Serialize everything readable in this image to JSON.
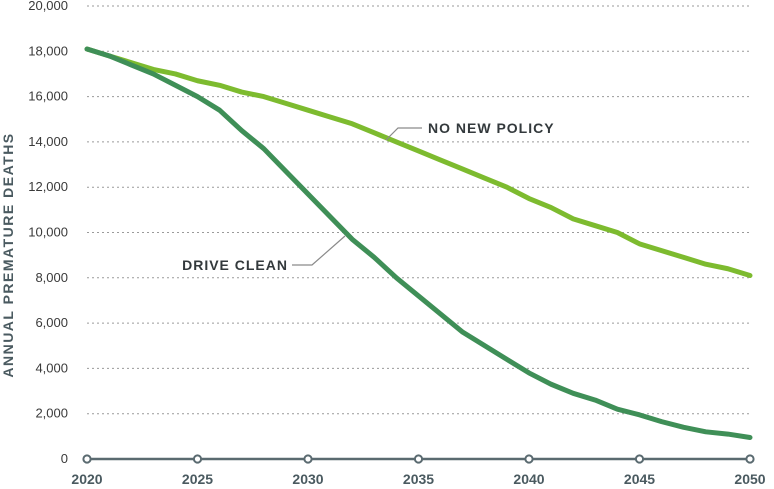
{
  "chart_data": {
    "type": "line",
    "title": "",
    "xlabel": "",
    "ylabel": "ANNUAL PREMATURE DEATHS",
    "xlim": [
      2020,
      2050
    ],
    "ylim": [
      0,
      20000
    ],
    "x_ticks": [
      2020,
      2025,
      2030,
      2035,
      2040,
      2045,
      2050
    ],
    "x_tick_labels": [
      "2020",
      "2025",
      "2030",
      "2035",
      "2040",
      "2045",
      "2050"
    ],
    "y_ticks": [
      0,
      2000,
      4000,
      6000,
      8000,
      10000,
      12000,
      14000,
      16000,
      18000,
      20000
    ],
    "y_tick_labels": [
      "0",
      "2,000",
      "4,000",
      "6,000",
      "8,000",
      "10,000",
      "12,000",
      "14,000",
      "16,000",
      "18,000",
      "20,000"
    ],
    "grid": true,
    "x": [
      2020,
      2021,
      2022,
      2023,
      2024,
      2025,
      2026,
      2027,
      2028,
      2029,
      2030,
      2031,
      2032,
      2033,
      2034,
      2035,
      2036,
      2037,
      2038,
      2039,
      2040,
      2041,
      2042,
      2043,
      2044,
      2045,
      2046,
      2047,
      2048,
      2049,
      2050
    ],
    "series": [
      {
        "name": "NO NEW POLICY",
        "color": "#7dbb2f",
        "values": [
          18100,
          17800,
          17500,
          17200,
          17000,
          16700,
          16500,
          16200,
          16000,
          15700,
          15400,
          15100,
          14800,
          14400,
          14000,
          13600,
          13200,
          12800,
          12400,
          12000,
          11500,
          11100,
          10600,
          10300,
          10000,
          9500,
          9200,
          8900,
          8600,
          8400,
          8100
        ]
      },
      {
        "name": "DRIVE CLEAN",
        "color": "#3f8f57",
        "values": [
          18100,
          17800,
          17400,
          17000,
          16500,
          16000,
          15400,
          14500,
          13700,
          12700,
          11700,
          10700,
          9700,
          8900,
          8000,
          7200,
          6400,
          5600,
          5000,
          4400,
          3800,
          3300,
          2900,
          2600,
          2200,
          1950,
          1650,
          1400,
          1200,
          1100,
          950
        ]
      }
    ],
    "annotations": [
      {
        "text": "NO NEW POLICY",
        "series": "NO NEW POLICY",
        "x": 2034,
        "y": 14000
      },
      {
        "text": "DRIVE CLEAN",
        "series": "DRIVE CLEAN",
        "x": 2031.8,
        "y": 9900
      }
    ]
  }
}
